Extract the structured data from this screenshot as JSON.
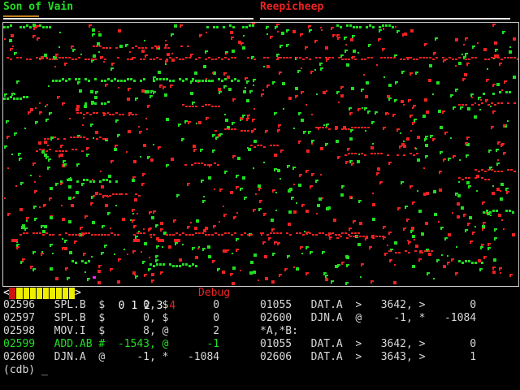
{
  "header": {
    "warrior1": "Son of Vain",
    "warrior2": "Reepicheep"
  },
  "colors": {
    "warrior1": "#22dd22",
    "warrior2": "#ee2222",
    "highlight_w1": "#ff2200",
    "highlight_w2": "#ff22ff"
  },
  "status_bar": {
    "left_arrow": "<",
    "right_arrow": ">",
    "panels": [
      "0",
      "1",
      "2",
      "3",
      "4"
    ],
    "mode": "Debug"
  },
  "left_panel": [
    {
      "addr": "02596",
      "op": "SPL.B",
      "am1": "$",
      "a": "0,",
      "am2": "$",
      "b": "0"
    },
    {
      "addr": "02597",
      "op": "SPL.B",
      "am1": "$",
      "a": "0,",
      "am2": "$",
      "b": "0"
    },
    {
      "addr": "02598",
      "op": "MOV.I",
      "am1": "$",
      "a": "8,",
      "am2": "@",
      "b": "2"
    },
    {
      "addr": "02599",
      "op": "ADD.AB",
      "am1": "#",
      "a": "-1543,",
      "am2": "@",
      "b": "-1",
      "current": true
    },
    {
      "addr": "02600",
      "op": "DJN.A",
      "am1": "@",
      "a": "-1,",
      "am2": "*",
      "b": "-1084"
    }
  ],
  "right_panel": [
    {
      "addr": "01055",
      "op": "DAT.A",
      "am1": ">",
      "a": "3642,",
      "am2": ">",
      "b": "0"
    },
    {
      "addr": "02600",
      "op": "DJN.A",
      "am1": "@",
      "a": "-1,",
      "am2": "*",
      "b": "-1084"
    },
    {
      "text": "*A,*B:"
    },
    {
      "addr": "01055",
      "op": "DAT.A",
      "am1": ">",
      "a": "3642,",
      "am2": ">",
      "b": "0"
    },
    {
      "addr": "02606",
      "op": "DAT.A",
      "am1": ">",
      "a": "3643,",
      "am2": ">",
      "b": "1"
    }
  ],
  "prompt": "(cdb) _"
}
